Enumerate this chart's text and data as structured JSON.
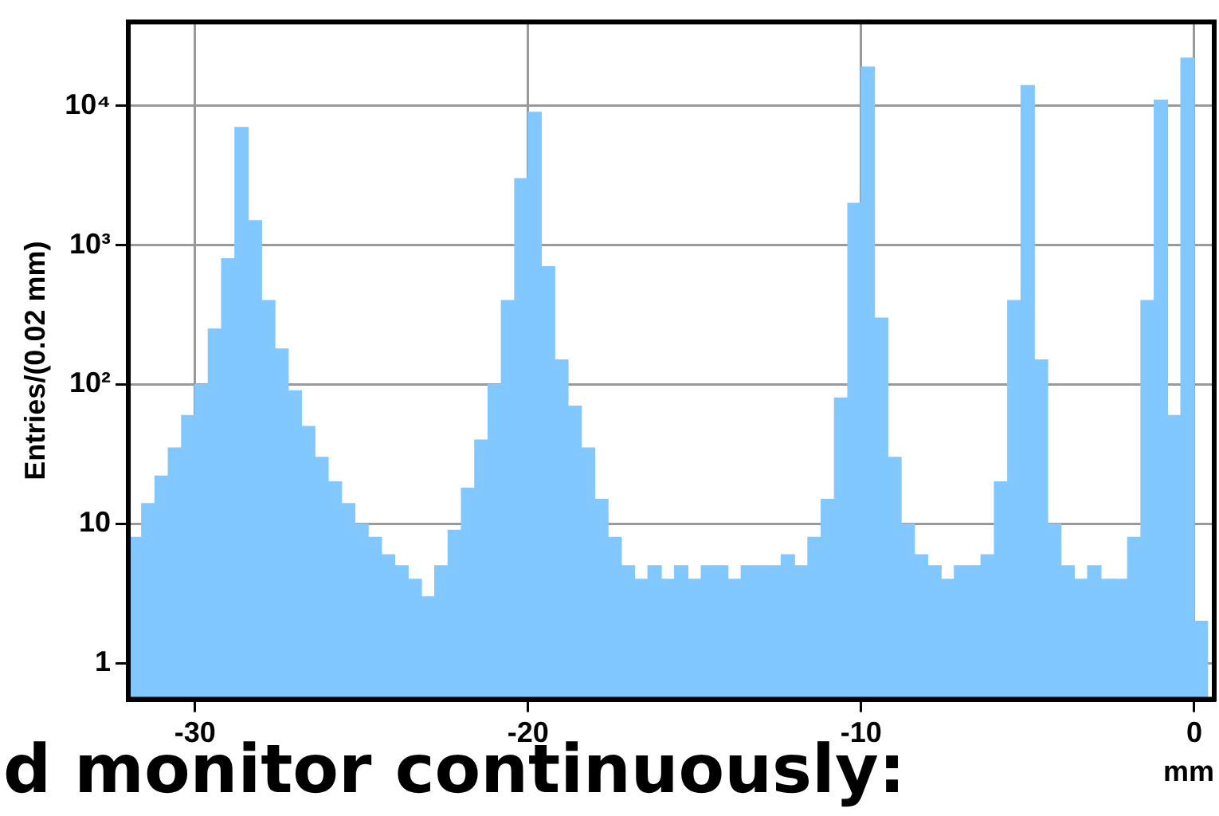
{
  "chart_data": {
    "type": "histogram",
    "xlabel": "mm",
    "ylabel": "Entries/(0.02 mm)",
    "bins": [
      -32,
      -31.6,
      -31.2,
      -30.8,
      -30.4,
      -30,
      -29.6,
      -29.2,
      -28.8,
      -28.4,
      -28,
      -27.6,
      -27.2,
      -26.8,
      -26.4,
      -26,
      -25.6,
      -25.2,
      -24.8,
      -24.4,
      -24,
      -23.6,
      -23.2,
      -22.8,
      -22.4,
      -22,
      -21.6,
      -21.2,
      -20.8,
      -20.4,
      -20,
      -19.6,
      -19.2,
      -18.8,
      -18.4,
      -18,
      -17.6,
      -17.2,
      -16.8,
      -16.4,
      -16,
      -15.6,
      -15.2,
      -14.8,
      -14.4,
      -14,
      -13.6,
      -13.2,
      -12.8,
      -12.4,
      -12,
      -11.6,
      -11.2,
      -10.8,
      -10.4,
      -10,
      -9.6,
      -9.2,
      -8.8,
      -8.4,
      -8,
      -7.6,
      -7.2,
      -6.8,
      -6.4,
      -6,
      -5.6,
      -5.2,
      -4.8,
      -4.4,
      -4,
      -3.6,
      -3.2,
      -2.8,
      -2.4,
      -2,
      -1.6,
      -1.2,
      -0.8,
      -0.4,
      0,
      0.4
    ],
    "values": [
      8,
      14,
      22,
      35,
      60,
      100,
      250,
      800,
      7000,
      1500,
      400,
      180,
      90,
      50,
      30,
      20,
      14,
      10,
      8,
      6,
      5,
      4,
      3,
      5,
      9,
      18,
      40,
      100,
      400,
      3000,
      9000,
      700,
      150,
      70,
      35,
      15,
      8,
      5,
      4,
      5,
      4,
      5,
      4,
      5,
      5,
      4,
      5,
      5,
      5,
      6,
      5,
      8,
      15,
      80,
      2000,
      19000,
      300,
      30,
      10,
      6,
      5,
      4,
      5,
      5,
      6,
      20,
      400,
      14000,
      150,
      10,
      5,
      4,
      5,
      4,
      4,
      8,
      400,
      11000,
      60,
      22000,
      2
    ],
    "color": "#80c8ff",
    "xlim": [
      -32,
      0.6
    ],
    "xticks": [
      -30,
      -20,
      -10,
      0
    ],
    "ylim": [
      0.55,
      40000
    ],
    "yticks": [
      1,
      10,
      {
        "value": 100,
        "label": "10²"
      },
      {
        "value": 1000,
        "label": "10³"
      },
      {
        "value": 10000,
        "label": "10⁴"
      }
    ],
    "log": "y",
    "grid": true,
    "annotations": [
      "d monitor continuously:"
    ]
  }
}
